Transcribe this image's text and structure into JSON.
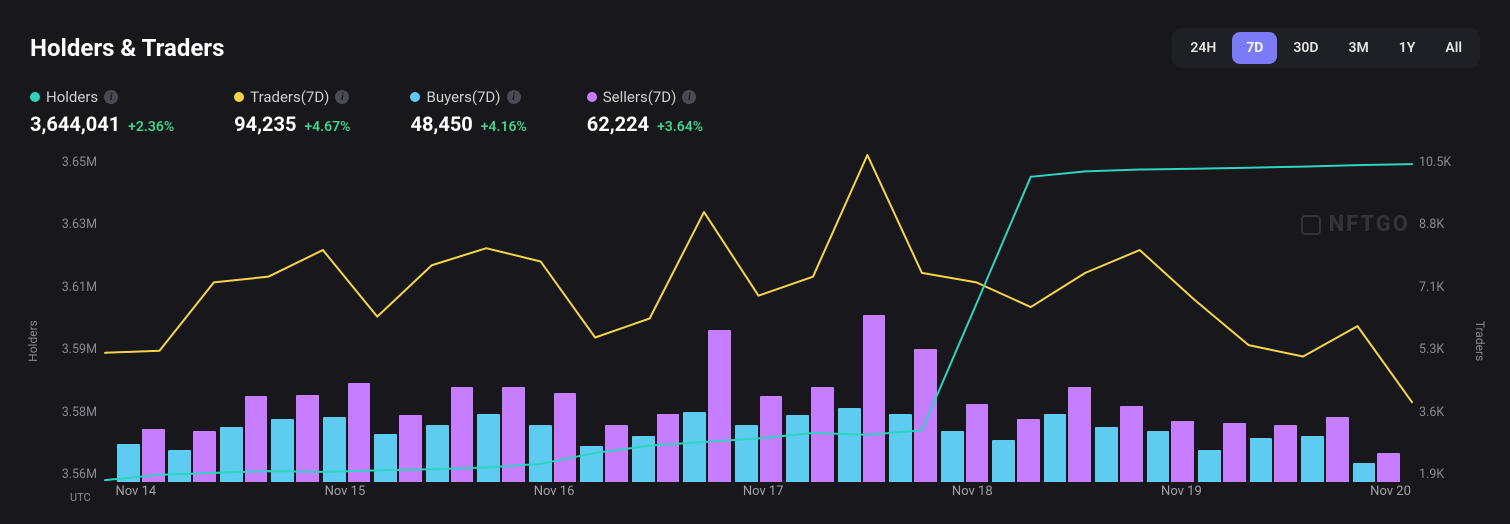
{
  "title": "Holders & Traders",
  "watermark": "NFTGO",
  "utc_label": "UTC",
  "range_tabs": [
    "24H",
    "7D",
    "30D",
    "3M",
    "1Y",
    "All"
  ],
  "active_range": "7D",
  "stats": [
    {
      "key": "holders",
      "label": "Holders",
      "value": "3,644,041",
      "change": "+2.36%",
      "color": "#2dd4bf"
    },
    {
      "key": "traders",
      "label": "Traders(7D)",
      "value": "94,235",
      "change": "+4.67%",
      "color": "#f5d547"
    },
    {
      "key": "buyers",
      "label": "Buyers(7D)",
      "value": "48,450",
      "change": "+4.16%",
      "color": "#5ecbf0"
    },
    {
      "key": "sellers",
      "label": "Sellers(7D)",
      "value": "62,224",
      "change": "+3.64%",
      "color": "#c77dff"
    }
  ],
  "colors": {
    "holders_line": "#2dd4bf",
    "traders_line": "#f5d547",
    "buyers_bar": "#5ecbf0",
    "sellers_bar": "#c77dff",
    "change_pos": "#3dd68c",
    "bg": "#17171c",
    "tick": "#8a8a92"
  },
  "chart": {
    "type": "combo-bar-line",
    "y_left": {
      "label": "Holders",
      "min": 3560000,
      "max": 3650000,
      "ticks": [
        "3.65M",
        "3.63M",
        "3.61M",
        "3.59M",
        "3.58M",
        "3.56M"
      ]
    },
    "y_right": {
      "label": "Traders",
      "min": 1900,
      "max": 10500,
      "ticks": [
        "10.5K",
        "8.8K",
        "7.1K",
        "5.3K",
        "3.6K",
        "1.9K"
      ]
    },
    "x_ticks": [
      {
        "label": "Nov 14",
        "pos": 0
      },
      {
        "label": "Nov 15",
        "pos": 4
      },
      {
        "label": "Nov 16",
        "pos": 8
      },
      {
        "label": "Nov 17",
        "pos": 12
      },
      {
        "label": "Nov 18",
        "pos": 16
      },
      {
        "label": "Nov 19",
        "pos": 20
      },
      {
        "label": "Nov 20",
        "pos": 24
      }
    ],
    "bars_axis": "right",
    "bars": [
      {
        "buyers": 2900,
        "sellers": 3300
      },
      {
        "buyers": 2750,
        "sellers": 3250
      },
      {
        "buyers": 3350,
        "sellers": 4150
      },
      {
        "buyers": 3550,
        "sellers": 4200
      },
      {
        "buyers": 3600,
        "sellers": 4500
      },
      {
        "buyers": 3150,
        "sellers": 3650
      },
      {
        "buyers": 3400,
        "sellers": 4400
      },
      {
        "buyers": 3700,
        "sellers": 4400
      },
      {
        "buyers": 3400,
        "sellers": 4250
      },
      {
        "buyers": 2850,
        "sellers": 3400
      },
      {
        "buyers": 3100,
        "sellers": 3700
      },
      {
        "buyers": 3750,
        "sellers": 5900
      },
      {
        "buyers": 3400,
        "sellers": 4150
      },
      {
        "buyers": 3650,
        "sellers": 4400
      },
      {
        "buyers": 3850,
        "sellers": 6300
      },
      {
        "buyers": 3700,
        "sellers": 5400
      },
      {
        "buyers": 3250,
        "sellers": 3950
      },
      {
        "buyers": 3000,
        "sellers": 3550
      },
      {
        "buyers": 3700,
        "sellers": 4400
      },
      {
        "buyers": 3350,
        "sellers": 3900
      },
      {
        "buyers": 3250,
        "sellers": 3500
      },
      {
        "buyers": 2750,
        "sellers": 3450
      },
      {
        "buyers": 3050,
        "sellers": 3400
      },
      {
        "buyers": 3100,
        "sellers": 3600
      },
      {
        "buyers": 2400,
        "sellers": 2650
      }
    ],
    "holders_line": {
      "axis": "left",
      "values": [
        3560500,
        3562000,
        3562500,
        3563000,
        3562800,
        3563200,
        3563500,
        3564000,
        3565000,
        3568000,
        3570000,
        3571000,
        3572000,
        3573500,
        3573000,
        3574200,
        3609000,
        3644000,
        3645500,
        3646000,
        3646200,
        3646500,
        3646800,
        3647200,
        3647500
      ]
    },
    "traders_line": {
      "axis": "right",
      "values": [
        5300,
        5350,
        7150,
        7300,
        8000,
        6250,
        7600,
        8050,
        7700,
        5700,
        6200,
        9000,
        6800,
        7300,
        10500,
        7400,
        7150,
        6500,
        7400,
        8000,
        6700,
        5500,
        5200,
        6000,
        4000
      ]
    }
  }
}
